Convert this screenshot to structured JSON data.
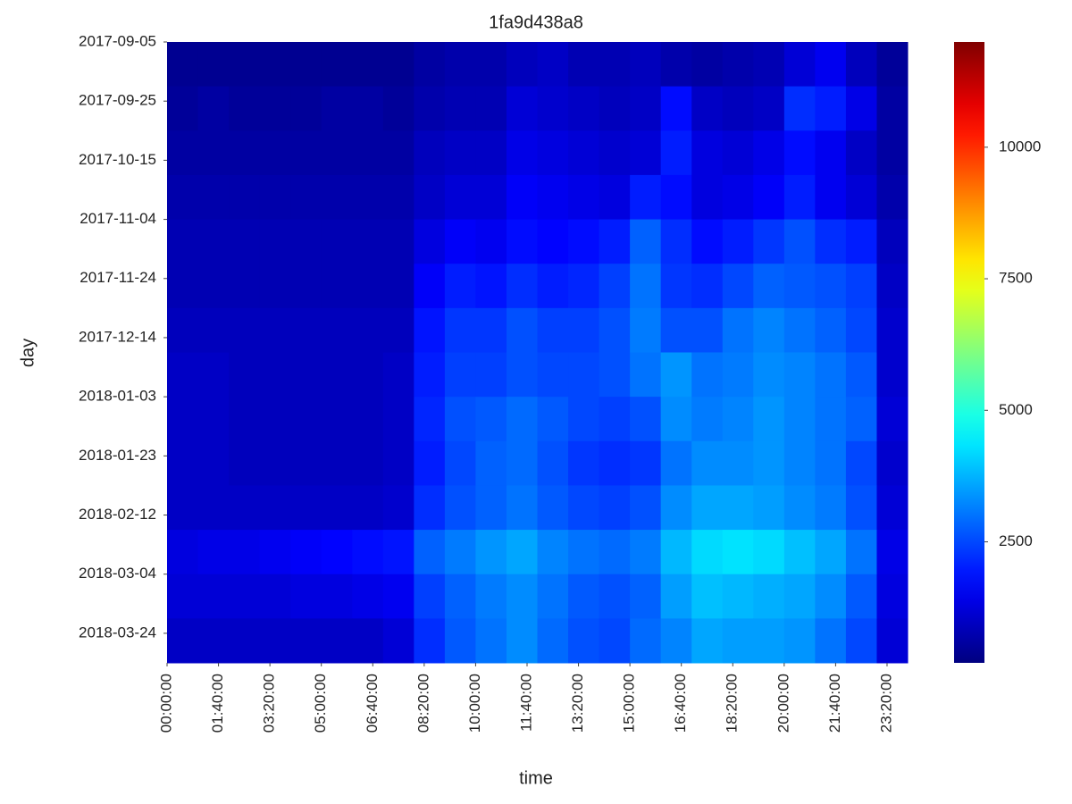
{
  "chart_data": {
    "type": "heatmap",
    "title": "1fa9d438a8",
    "xlabel": "time",
    "ylabel": "day",
    "colormap": "jet",
    "xlim": [
      0,
      1440
    ],
    "ylim": [
      0,
      210
    ],
    "clim": [
      200,
      12000
    ],
    "xticks": [
      {
        "value": 0,
        "label": "00:00:00"
      },
      {
        "value": 100,
        "label": "01:40:00"
      },
      {
        "value": 200,
        "label": "03:20:00"
      },
      {
        "value": 300,
        "label": "05:00:00"
      },
      {
        "value": 400,
        "label": "06:40:00"
      },
      {
        "value": 500,
        "label": "08:20:00"
      },
      {
        "value": 600,
        "label": "10:00:00"
      },
      {
        "value": 700,
        "label": "11:40:00"
      },
      {
        "value": 800,
        "label": "13:20:00"
      },
      {
        "value": 900,
        "label": "15:00:00"
      },
      {
        "value": 1000,
        "label": "16:40:00"
      },
      {
        "value": 1100,
        "label": "18:20:00"
      },
      {
        "value": 1200,
        "label": "20:00:00"
      },
      {
        "value": 1300,
        "label": "21:40:00"
      },
      {
        "value": 1400,
        "label": "23:20:00"
      }
    ],
    "yticks": [
      {
        "value": 0,
        "label": "2017-09-05"
      },
      {
        "value": 20,
        "label": "2017-09-25"
      },
      {
        "value": 40,
        "label": "2017-10-15"
      },
      {
        "value": 60,
        "label": "2017-11-04"
      },
      {
        "value": 80,
        "label": "2017-11-24"
      },
      {
        "value": 100,
        "label": "2017-12-14"
      },
      {
        "value": 120,
        "label": "2018-01-03"
      },
      {
        "value": 140,
        "label": "2018-01-23"
      },
      {
        "value": 160,
        "label": "2018-02-12"
      },
      {
        "value": 180,
        "label": "2018-03-04"
      },
      {
        "value": 200,
        "label": "2018-03-24"
      }
    ],
    "cticks": [
      2500,
      5000,
      7500,
      10000
    ],
    "xbins": [
      0,
      60,
      120,
      180,
      240,
      300,
      360,
      420,
      480,
      540,
      600,
      660,
      720,
      780,
      840,
      900,
      960,
      1020,
      1080,
      1140,
      1200,
      1260,
      1320,
      1380,
      1440
    ],
    "ybins": [
      0,
      15,
      30,
      45,
      60,
      75,
      90,
      105,
      120,
      135,
      150,
      165,
      180,
      195,
      210
    ],
    "z": [
      [
        400,
        400,
        400,
        400,
        400,
        400,
        400,
        400,
        600,
        700,
        700,
        900,
        1000,
        800,
        800,
        900,
        700,
        600,
        700,
        800,
        1200,
        1500,
        900,
        500
      ],
      [
        500,
        600,
        500,
        500,
        500,
        600,
        600,
        500,
        700,
        800,
        800,
        1200,
        1100,
        1000,
        900,
        1000,
        1800,
        1000,
        900,
        1000,
        2200,
        2000,
        1400,
        600
      ],
      [
        600,
        600,
        600,
        600,
        600,
        600,
        600,
        600,
        900,
        1000,
        1000,
        1400,
        1300,
        1200,
        1100,
        1200,
        2000,
        1300,
        1200,
        1400,
        1800,
        1500,
        1000,
        600
      ],
      [
        700,
        700,
        700,
        700,
        700,
        700,
        700,
        700,
        1000,
        1200,
        1200,
        1600,
        1500,
        1400,
        1300,
        2000,
        1800,
        1300,
        1400,
        1600,
        2000,
        1500,
        1200,
        700
      ],
      [
        800,
        800,
        800,
        800,
        800,
        800,
        800,
        800,
        1300,
        1600,
        1500,
        1800,
        1700,
        1800,
        2000,
        2800,
        2200,
        1800,
        2000,
        2300,
        2600,
        2200,
        2000,
        900
      ],
      [
        800,
        800,
        800,
        800,
        800,
        800,
        800,
        800,
        1600,
        2000,
        1900,
        2200,
        2000,
        2100,
        2400,
        3000,
        2300,
        2200,
        2500,
        2800,
        2700,
        2600,
        2400,
        1000
      ],
      [
        900,
        900,
        900,
        900,
        900,
        900,
        900,
        900,
        1900,
        2300,
        2300,
        2600,
        2400,
        2400,
        2600,
        3100,
        2600,
        2600,
        3000,
        3200,
        3000,
        2800,
        2500,
        1100
      ],
      [
        1000,
        1000,
        900,
        900,
        900,
        900,
        900,
        1000,
        2000,
        2400,
        2400,
        2600,
        2500,
        2500,
        2600,
        3000,
        3400,
        3000,
        3100,
        3300,
        3200,
        3000,
        2700,
        1100
      ],
      [
        1000,
        1000,
        900,
        900,
        900,
        900,
        900,
        1000,
        2100,
        2600,
        2700,
        2900,
        2700,
        2500,
        2400,
        2600,
        3300,
        3100,
        3200,
        3400,
        3200,
        3000,
        2800,
        1200
      ],
      [
        1000,
        1000,
        900,
        900,
        900,
        900,
        900,
        1000,
        2000,
        2500,
        2800,
        2900,
        2600,
        2300,
        2200,
        2300,
        3000,
        3300,
        3300,
        3400,
        3200,
        3000,
        2500,
        1100
      ],
      [
        1000,
        1000,
        1000,
        1000,
        1000,
        1000,
        1000,
        1100,
        2200,
        2600,
        2800,
        3000,
        2700,
        2500,
        2400,
        2600,
        3300,
        3600,
        3600,
        3500,
        3300,
        3100,
        2600,
        1200
      ],
      [
        1300,
        1400,
        1400,
        1500,
        1600,
        1700,
        1800,
        1900,
        2800,
        3100,
        3400,
        3600,
        3200,
        3000,
        2900,
        3100,
        3800,
        4200,
        4300,
        4200,
        3900,
        3600,
        3000,
        1400
      ],
      [
        1200,
        1200,
        1200,
        1200,
        1300,
        1300,
        1400,
        1500,
        2400,
        2800,
        3100,
        3300,
        3000,
        2700,
        2600,
        2800,
        3500,
        3900,
        3800,
        3700,
        3600,
        3300,
        2700,
        1300
      ],
      [
        1000,
        1000,
        1000,
        1000,
        1000,
        1000,
        1000,
        1200,
        2200,
        2700,
        3000,
        3300,
        2900,
        2600,
        2500,
        2900,
        3200,
        3600,
        3500,
        3500,
        3400,
        3000,
        2500,
        1200
      ]
    ]
  }
}
